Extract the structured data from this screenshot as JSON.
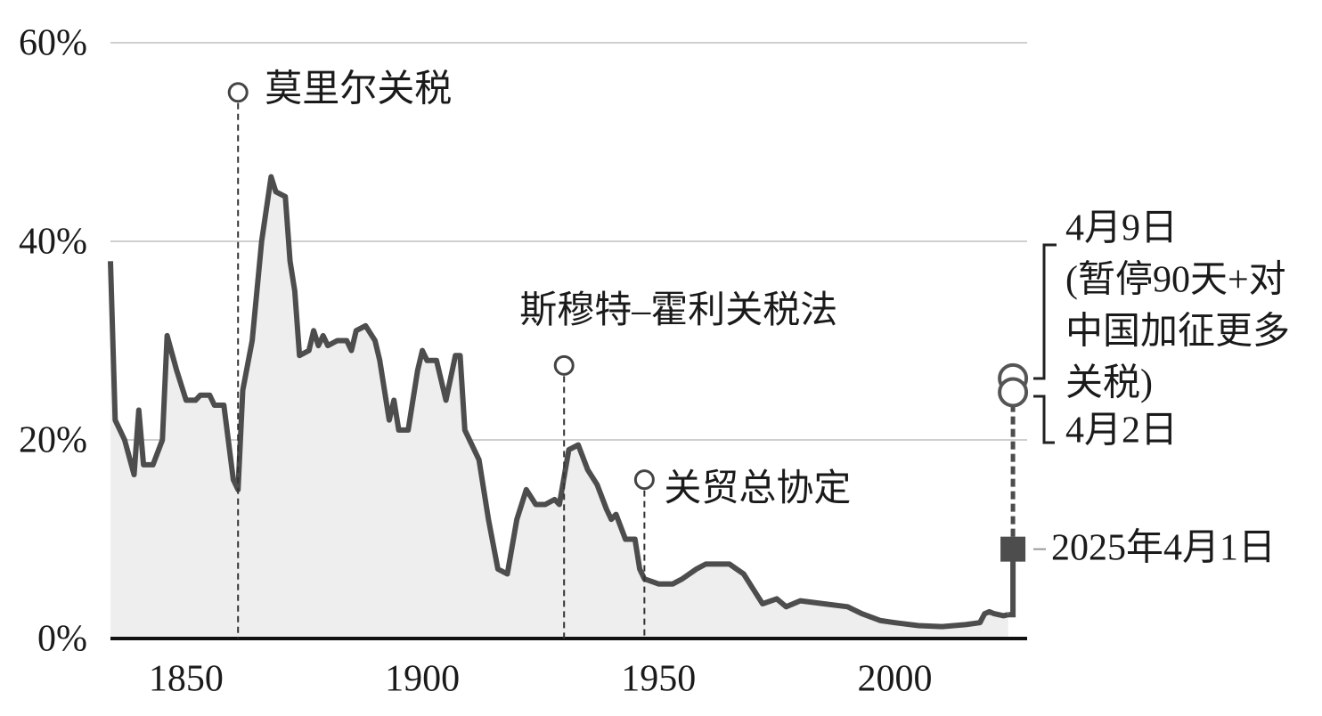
{
  "chart_data": {
    "type": "line",
    "x": [
      1834,
      1835,
      1837,
      1839,
      1840,
      1841,
      1843,
      1845,
      1846,
      1848,
      1850,
      1852,
      1853,
      1855,
      1856,
      1858,
      1860,
      1861,
      1862,
      1864,
      1866,
      1868,
      1869,
      1871,
      1872,
      1873,
      1874,
      1876,
      1877,
      1878,
      1879,
      1880,
      1882,
      1884,
      1885,
      1886,
      1888,
      1890,
      1891,
      1893,
      1894,
      1895,
      1897,
      1899,
      1900,
      1901,
      1903,
      1905,
      1907,
      1908,
      1909,
      1912,
      1914,
      1916,
      1918,
      1920,
      1922,
      1924,
      1926,
      1928,
      1929,
      1931,
      1933,
      1935,
      1937,
      1939,
      1940,
      1941,
      1943,
      1945,
      1946,
      1947,
      1950,
      1953,
      1955,
      1958,
      1960,
      1965,
      1968,
      1970,
      1972,
      1975,
      1977,
      1980,
      1985,
      1990,
      1993,
      1997,
      2000,
      2005,
      2010,
      2015,
      2018,
      2019,
      2020,
      2021,
      2023,
      2024
    ],
    "series": [
      {
        "color": "#4d4d4d",
        "fill": "#eeeeee",
        "values": [
          38,
          22,
          20,
          16.5,
          23,
          17.5,
          17.5,
          20,
          30.5,
          27,
          24,
          24,
          24.5,
          24.5,
          23.5,
          23.5,
          16,
          15,
          25,
          30,
          40,
          46.5,
          45,
          44.5,
          38,
          35,
          28.5,
          29,
          31,
          29.5,
          30.5,
          29.5,
          30,
          30,
          29,
          31,
          31.5,
          30,
          28,
          22,
          24,
          21,
          21,
          27,
          29,
          28,
          28,
          24,
          28.5,
          28.5,
          21,
          18,
          12,
          7,
          6.5,
          12,
          15,
          13.5,
          13.5,
          14,
          13.5,
          19,
          19.5,
          17,
          15.5,
          13,
          12,
          12.5,
          10,
          10,
          7,
          6,
          5.5,
          5.5,
          6,
          7,
          7.5,
          7.5,
          6.5,
          5,
          3.5,
          4,
          3.2,
          3.8,
          3.5,
          3.2,
          2.5,
          1.8,
          1.6,
          1.3,
          1.2,
          1.4,
          1.6,
          2.5,
          2.7,
          2.5,
          2.3,
          2.4
        ]
      }
    ],
    "events": [
      {
        "label": "莫里尔关税",
        "x": 1861,
        "y": 55
      },
      {
        "label": "斯穆特–霍利关税法",
        "x": 1930,
        "y": 27.5
      },
      {
        "label": "关贸总协定",
        "x": 1947,
        "y": 16
      }
    ],
    "recent_points": [
      {
        "label": [
          "2025年4月1日"
        ],
        "x": 2025,
        "y": 9
      },
      {
        "label": [
          "4月2日"
        ],
        "x": 2025,
        "y": 24.8
      },
      {
        "label": [
          "4月9日",
          "(暂停90天+对",
          "中国加征更多",
          "关税)"
        ],
        "x": 2025,
        "y": 26.2
      }
    ],
    "xlim": [
      1834,
      2028
    ],
    "ylim": [
      0,
      60
    ],
    "xticks": [
      1850,
      1900,
      1950,
      2000
    ],
    "yticks": [
      {
        "value": 0,
        "label": "0%"
      },
      {
        "value": 20,
        "label": "20%"
      },
      {
        "value": 40,
        "label": "40%"
      },
      {
        "value": 60,
        "label": "60%"
      }
    ],
    "grid": true
  }
}
